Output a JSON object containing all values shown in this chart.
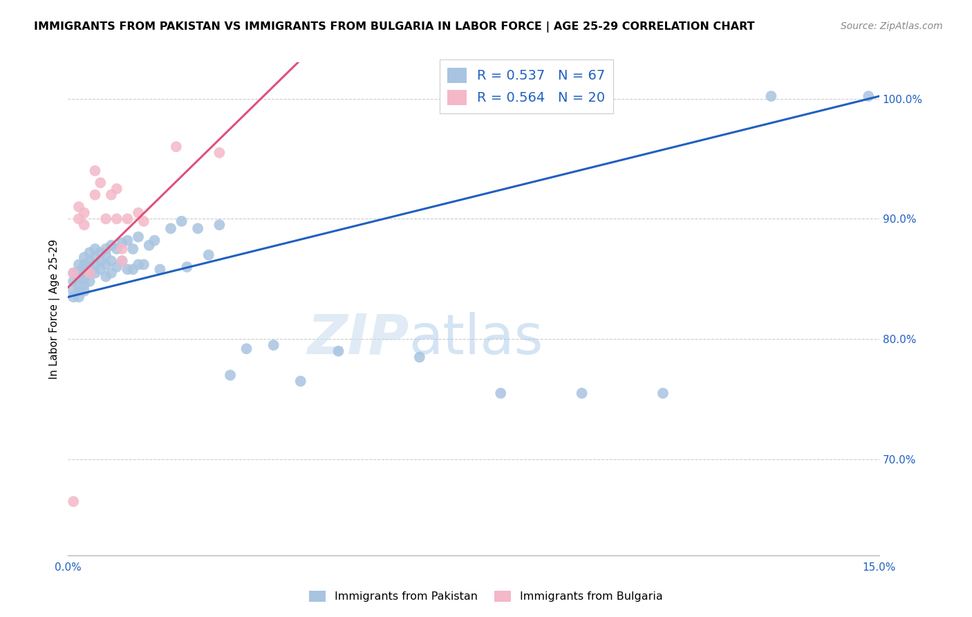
{
  "title": "IMMIGRANTS FROM PAKISTAN VS IMMIGRANTS FROM BULGARIA IN LABOR FORCE | AGE 25-29 CORRELATION CHART",
  "source": "Source: ZipAtlas.com",
  "ylabel": "In Labor Force | Age 25-29",
  "xlim": [
    0.0,
    0.15
  ],
  "ylim": [
    0.62,
    1.03
  ],
  "xtick_positions": [
    0.0,
    0.025,
    0.05,
    0.075,
    0.1,
    0.125,
    0.15
  ],
  "xtick_labels": [
    "0.0%",
    "",
    "",
    "",
    "",
    "",
    "15.0%"
  ],
  "ytick_positions": [
    0.7,
    0.8,
    0.9,
    1.0
  ],
  "ytick_labels_right": [
    "70.0%",
    "80.0%",
    "90.0%",
    "100.0%"
  ],
  "pakistan_color": "#a8c4e0",
  "bulgaria_color": "#f4b8c8",
  "pakistan_line_color": "#2060c0",
  "bulgaria_line_color": "#e0507a",
  "legend_R_pakistan": "0.537",
  "legend_N_pakistan": "67",
  "legend_R_bulgaria": "0.564",
  "legend_N_bulgaria": "20",
  "pakistan_x": [
    0.001,
    0.001,
    0.001,
    0.001,
    0.002,
    0.002,
    0.002,
    0.002,
    0.002,
    0.002,
    0.003,
    0.003,
    0.003,
    0.003,
    0.003,
    0.003,
    0.003,
    0.004,
    0.004,
    0.004,
    0.004,
    0.004,
    0.005,
    0.005,
    0.005,
    0.005,
    0.006,
    0.006,
    0.006,
    0.007,
    0.007,
    0.007,
    0.007,
    0.008,
    0.008,
    0.008,
    0.009,
    0.009,
    0.01,
    0.01,
    0.011,
    0.011,
    0.012,
    0.012,
    0.013,
    0.013,
    0.014,
    0.015,
    0.016,
    0.017,
    0.019,
    0.021,
    0.022,
    0.024,
    0.026,
    0.028,
    0.03,
    0.033,
    0.038,
    0.043,
    0.05,
    0.065,
    0.08,
    0.095,
    0.11,
    0.13,
    0.148
  ],
  "pakistan_y": [
    0.855,
    0.848,
    0.84,
    0.835,
    0.862,
    0.856,
    0.852,
    0.846,
    0.84,
    0.835,
    0.868,
    0.862,
    0.858,
    0.854,
    0.85,
    0.845,
    0.84,
    0.872,
    0.865,
    0.86,
    0.855,
    0.848,
    0.875,
    0.868,
    0.862,
    0.855,
    0.872,
    0.865,
    0.858,
    0.875,
    0.87,
    0.862,
    0.852,
    0.878,
    0.865,
    0.855,
    0.875,
    0.86,
    0.88,
    0.865,
    0.882,
    0.858,
    0.875,
    0.858,
    0.885,
    0.862,
    0.862,
    0.878,
    0.882,
    0.858,
    0.892,
    0.898,
    0.86,
    0.892,
    0.87,
    0.895,
    0.77,
    0.792,
    0.795,
    0.765,
    0.79,
    0.785,
    0.755,
    0.755,
    0.755,
    1.002,
    1.002
  ],
  "bulgaria_x": [
    0.001,
    0.002,
    0.002,
    0.003,
    0.003,
    0.004,
    0.005,
    0.005,
    0.006,
    0.007,
    0.008,
    0.009,
    0.009,
    0.01,
    0.01,
    0.011,
    0.013,
    0.014,
    0.02,
    0.028
  ],
  "bulgaria_y": [
    0.855,
    0.91,
    0.9,
    0.905,
    0.895,
    0.855,
    0.94,
    0.92,
    0.93,
    0.9,
    0.92,
    0.925,
    0.9,
    0.875,
    0.865,
    0.9,
    0.905,
    0.898,
    0.96,
    0.955
  ],
  "bulgaria_outlier_x": [
    0.001
  ],
  "bulgaria_outlier_y": [
    0.665
  ],
  "watermark_zip": "ZIP",
  "watermark_atlas": "atlas",
  "legend_label_pakistan": "Immigrants from Pakistan",
  "legend_label_bulgaria": "Immigrants from Bulgaria"
}
